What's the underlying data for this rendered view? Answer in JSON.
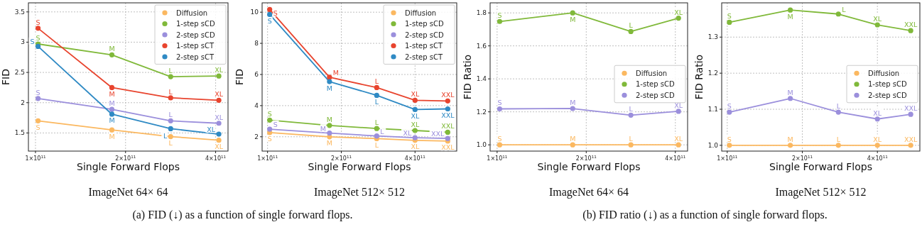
{
  "chart_data": [
    {
      "type": "line",
      "title": "ImageNet 64× 64",
      "xlabel": "Single Forward Flops",
      "ylabel": "FID",
      "log": "x",
      "grid": true,
      "legend": "top right",
      "marker": "circle",
      "line_style": "solid",
      "x": [
        102000000000.0,
        180000000000.0,
        283000000000.0,
        410000000000.0
      ],
      "xlim": [
        94700000000.0,
        440000000000.0
      ],
      "xticks": [
        {
          "value": 100000000000.0,
          "label": "1×10$^{11}$"
        },
        {
          "value": 200000000000.0,
          "label": "2×10$^{11}$"
        },
        {
          "value": 400000000000.0,
          "label": "4×10$^{11}$"
        }
      ],
      "ylim": [
        1.2,
        3.65
      ],
      "yticks": [
        1.5,
        2.0,
        2.5,
        3.0,
        3.5
      ],
      "series": [
        {
          "name": "Diffusion",
          "color": "#fbb860",
          "values": [
            1.7,
            1.55,
            1.44,
            1.38
          ]
        },
        {
          "name": "1-step sCD",
          "color": "#80b93a",
          "values": [
            2.97,
            2.79,
            2.43,
            2.44
          ]
        },
        {
          "name": "2-step sCD",
          "color": "#9b8fdc",
          "values": [
            2.07,
            1.89,
            1.7,
            1.66
          ]
        },
        {
          "name": "1-step sCT",
          "color": "#e8442e",
          "values": [
            3.23,
            2.25,
            2.08,
            2.04
          ]
        },
        {
          "name": "2-step sCT",
          "color": "#2f8ac4",
          "values": [
            2.93,
            1.81,
            1.57,
            1.48
          ]
        }
      ],
      "annotations": [
        {
          "text": "S",
          "x": 102000000000.0,
          "y": 1.7
        },
        {
          "text": "M",
          "x": 180000000000.0,
          "y": 1.55
        },
        {
          "text": "L",
          "x": 283000000000.0,
          "y": 1.44
        },
        {
          "text": "XL",
          "x": 410000000000.0,
          "y": 1.38
        },
        {
          "text": "S",
          "x": 102000000000.0,
          "y": 2.97
        },
        {
          "text": "M",
          "x": 180000000000.0,
          "y": 2.79
        },
        {
          "text": "L",
          "x": 283000000000.0,
          "y": 2.43
        },
        {
          "text": "XL",
          "x": 410000000000.0,
          "y": 2.44
        },
        {
          "text": "S",
          "x": 102000000000.0,
          "y": 2.07
        },
        {
          "text": "M",
          "x": 180000000000.0,
          "y": 1.89
        },
        {
          "text": "L",
          "x": 283000000000.0,
          "y": 1.7
        },
        {
          "text": "XL",
          "x": 410000000000.0,
          "y": 1.66
        },
        {
          "text": "S",
          "x": 102000000000.0,
          "y": 3.23
        },
        {
          "text": "M",
          "x": 180000000000.0,
          "y": 2.25
        },
        {
          "text": "L",
          "x": 283000000000.0,
          "y": 2.08
        },
        {
          "text": "XL",
          "x": 410000000000.0,
          "y": 2.04
        },
        {
          "text": "S",
          "x": 102000000000.0,
          "y": 2.93
        },
        {
          "text": "M",
          "x": 180000000000.0,
          "y": 1.81
        },
        {
          "text": "L",
          "x": 283000000000.0,
          "y": 1.57
        },
        {
          "text": "XL",
          "x": 410000000000.0,
          "y": 1.48
        },
        "(a) FID (↓) as a function of single forward flops."
      ]
    },
    {
      "type": "line",
      "title": "ImageNet 512× 512",
      "xlabel": "Single Forward Flops",
      "ylabel": "FID",
      "log": "x",
      "grid": true,
      "legend": "top right",
      "marker": "circle",
      "line_style": "solid",
      "x": [
        102000000000.0,
        179000000000.0,
        279000000000.0,
        400000000000.0,
        544000000000.0
      ],
      "xlim": [
        95000000000.0,
        592000000000.0
      ],
      "xticks": [
        {
          "value": 100000000000.0,
          "label": "1×10$^{11}$"
        },
        {
          "value": 200000000000.0,
          "label": "2×10$^{11}$"
        },
        {
          "value": 400000000000.0,
          "label": "4×10$^{11}$"
        }
      ],
      "ylim": [
        1.08,
        10.6
      ],
      "yticks": [
        2,
        4,
        6,
        8,
        10
      ],
      "series": [
        {
          "name": "Diffusion",
          "color": "#fbb860",
          "values": [
            2.27,
            2.0,
            1.88,
            1.77,
            1.72
          ]
        },
        {
          "name": "1-step sCD",
          "color": "#80b93a",
          "values": [
            3.07,
            2.73,
            2.53,
            2.4,
            2.29
          ]
        },
        {
          "name": "2-step sCD",
          "color": "#9b8fdc",
          "values": [
            2.49,
            2.24,
            2.05,
            1.94,
            1.89
          ]
        },
        {
          "name": "1-step sCT",
          "color": "#e8442e",
          "values": [
            10.17,
            5.82,
            5.16,
            4.34,
            4.3
          ]
        },
        {
          "name": "2-step sCT",
          "color": "#2f8ac4",
          "values": [
            9.85,
            5.54,
            4.66,
            3.75,
            3.79
          ]
        }
      ],
      "annotations": [
        {
          "text": "S",
          "x": 102000000000.0,
          "y": 2.27
        },
        {
          "text": "M",
          "x": 179000000000.0,
          "y": 2.0
        },
        {
          "text": "L",
          "x": 279000000000.0,
          "y": 1.88
        },
        {
          "text": "XL",
          "x": 400000000000.0,
          "y": 1.77
        },
        {
          "text": "XXL",
          "x": 544000000000.0,
          "y": 1.72
        },
        {
          "text": "S",
          "x": 102000000000.0,
          "y": 3.07
        },
        {
          "text": "M",
          "x": 179000000000.0,
          "y": 2.73
        },
        {
          "text": "L",
          "x": 279000000000.0,
          "y": 2.53
        },
        {
          "text": "XL",
          "x": 400000000000.0,
          "y": 2.4
        },
        {
          "text": "XXL",
          "x": 544000000000.0,
          "y": 2.29
        },
        {
          "text": "S",
          "x": 102000000000.0,
          "y": 2.49
        },
        {
          "text": "M",
          "x": 179000000000.0,
          "y": 2.24
        },
        {
          "text": "L",
          "x": 279000000000.0,
          "y": 2.05
        },
        {
          "text": "XL",
          "x": 400000000000.0,
          "y": 1.94
        },
        {
          "text": "XXL",
          "x": 544000000000.0,
          "y": 1.89
        },
        {
          "text": "S",
          "x": 102000000000.0,
          "y": 10.17
        },
        {
          "text": "M",
          "x": 179000000000.0,
          "y": 5.82
        },
        {
          "text": "L",
          "x": 279000000000.0,
          "y": 5.16
        },
        {
          "text": "XL",
          "x": 400000000000.0,
          "y": 4.34
        },
        {
          "text": "XXL",
          "x": 544000000000.0,
          "y": 4.3
        },
        {
          "text": "S",
          "x": 102000000000.0,
          "y": 9.85
        },
        {
          "text": "M",
          "x": 179000000000.0,
          "y": 5.54
        },
        {
          "text": "L",
          "x": 279000000000.0,
          "y": 4.66
        },
        {
          "text": "XL",
          "x": 400000000000.0,
          "y": 3.75
        },
        {
          "text": "XXL",
          "x": 544000000000.0,
          "y": 3.79
        }
      ]
    },
    {
      "type": "line",
      "title": "ImageNet 64× 64",
      "xlabel": "Single Forward Flops",
      "ylabel": "FID Ratio",
      "log": "x",
      "grid": true,
      "legend": "right",
      "marker": "circle",
      "line_style": "solid",
      "x": [
        102000000000.0,
        180000000000.0,
        283000000000.0,
        410000000000.0
      ],
      "xlim": [
        94700000000.0,
        440000000000.0
      ],
      "xticks": [
        {
          "value": 100000000000.0,
          "label": "1×10$^{11}$"
        },
        {
          "value": 200000000000.0,
          "label": "2×10$^{11}$"
        },
        {
          "value": 400000000000.0,
          "label": "4×10$^{11}$"
        }
      ],
      "ylim": [
        0.962,
        1.861
      ],
      "yticks": [
        {
          "value": 1.0,
          "label": "1.0"
        },
        {
          "value": 1.2,
          "label": "1.2"
        },
        {
          "value": 1.4,
          "label": "1.4"
        },
        {
          "value": 1.6,
          "label": "1.6"
        },
        {
          "value": 1.8,
          "label": "1.8"
        }
      ],
      "series": [
        {
          "name": "Diffusion",
          "color": "#fbb860",
          "values": [
            1.0,
            1.0,
            1.0,
            1.0
          ]
        },
        {
          "name": "1-step sCD",
          "color": "#80b93a",
          "values": [
            1.748,
            1.8,
            1.687,
            1.768
          ]
        },
        {
          "name": "2-step sCD",
          "color": "#9b8fdc",
          "values": [
            1.218,
            1.22,
            1.18,
            1.203
          ]
        }
      ],
      "annotations": [
        {
          "text": "S",
          "x": 102000000000.0,
          "y": 1.0
        },
        {
          "text": "M",
          "x": 180000000000.0,
          "y": 1.0
        },
        {
          "text": "L",
          "x": 283000000000.0,
          "y": 1.0
        },
        {
          "text": "XL",
          "x": 410000000000.0,
          "y": 1.0
        },
        {
          "text": "S",
          "x": 102000000000.0,
          "y": 1.748
        },
        {
          "text": "M",
          "x": 180000000000.0,
          "y": 1.8
        },
        {
          "text": "L",
          "x": 283000000000.0,
          "y": 1.687
        },
        {
          "text": "XL",
          "x": 410000000000.0,
          "y": 1.768
        },
        {
          "text": "S",
          "x": 102000000000.0,
          "y": 1.218
        },
        {
          "text": "M",
          "x": 180000000000.0,
          "y": 1.22
        },
        {
          "text": "L",
          "x": 283000000000.0,
          "y": 1.18
        },
        {
          "text": "XL",
          "x": 410000000000.0,
          "y": 1.203
        },
        "(b) FID ratio (↓) as a function of single forward flops."
      ]
    },
    {
      "type": "line",
      "title": "ImageNet 512× 512",
      "xlabel": "Single Forward Flops",
      "ylabel": "FID Ratio",
      "log": "x",
      "grid": true,
      "legend": "right",
      "marker": "circle",
      "line_style": "solid",
      "x": [
        102000000000.0,
        179000000000.0,
        279000000000.0,
        400000000000.0,
        544000000000.0
      ],
      "xlim": [
        95000000000.0,
        592000000000.0
      ],
      "xticks": [
        {
          "value": 100000000000.0,
          "label": "1×10$^{11}$"
        },
        {
          "value": 200000000000.0,
          "label": "2×10$^{11}$"
        },
        {
          "value": 400000000000.0,
          "label": "4×10$^{11}$"
        }
      ],
      "ylim": [
        0.984,
        1.395
      ],
      "yticks": [
        {
          "value": 1.0,
          "label": "1.0"
        },
        {
          "value": 1.1,
          "label": "1.1"
        },
        {
          "value": 1.2,
          "label": "1.2"
        },
        {
          "value": 1.3,
          "label": "1.3"
        }
      ],
      "series": [
        {
          "name": "Diffusion",
          "color": "#fbb860",
          "values": [
            1.0,
            1.0,
            1.0,
            1.0,
            1.0
          ]
        },
        {
          "name": "1-step sCD",
          "color": "#80b93a",
          "values": [
            1.341,
            1.375,
            1.364,
            1.334,
            1.318
          ]
        },
        {
          "name": "2-step sCD",
          "color": "#9b8fdc",
          "values": [
            1.092,
            1.13,
            1.092,
            1.073,
            1.086
          ]
        }
      ],
      "annotations": [
        {
          "text": "S",
          "x": 102000000000.0,
          "y": 1.0
        },
        {
          "text": "M",
          "x": 179000000000.0,
          "y": 1.0
        },
        {
          "text": "L",
          "x": 279000000000.0,
          "y": 1.0
        },
        {
          "text": "XL",
          "x": 400000000000.0,
          "y": 1.0
        },
        {
          "text": "XXL",
          "x": 544000000000.0,
          "y": 1.0
        },
        {
          "text": "S",
          "x": 102000000000.0,
          "y": 1.341
        },
        {
          "text": "M",
          "x": 179000000000.0,
          "y": 1.375
        },
        {
          "text": "L",
          "x": 279000000000.0,
          "y": 1.364
        },
        {
          "text": "XL",
          "x": 400000000000.0,
          "y": 1.334
        },
        {
          "text": "XXL",
          "x": 544000000000.0,
          "y": 1.318
        },
        {
          "text": "S",
          "x": 102000000000.0,
          "y": 1.092
        },
        {
          "text": "M",
          "x": 179000000000.0,
          "y": 1.13
        },
        {
          "text": "L",
          "x": 279000000000.0,
          "y": 1.092
        },
        {
          "text": "XL",
          "x": 400000000000.0,
          "y": 1.073
        },
        {
          "text": "XXL",
          "x": 544000000000.0,
          "y": 1.086
        }
      ]
    }
  ]
}
